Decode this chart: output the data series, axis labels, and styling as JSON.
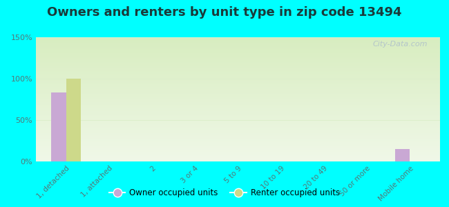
{
  "title": "Owners and renters by unit type in zip code 13494",
  "categories": [
    "1, detached",
    "1, attached",
    "2",
    "3 or 4",
    "5 to 9",
    "10 to 19",
    "20 to 49",
    "50 or more",
    "Mobile home"
  ],
  "owner_values": [
    83,
    0,
    0,
    0,
    0,
    0,
    0,
    0,
    15
  ],
  "renter_values": [
    100,
    0,
    0,
    0,
    0,
    0,
    0,
    0,
    0
  ],
  "owner_color": "#c9a8d4",
  "renter_color": "#cdd98a",
  "background_color": "#00ffff",
  "ylim": [
    0,
    150
  ],
  "yticks": [
    0,
    50,
    100,
    150
  ],
  "ytick_labels": [
    "0%",
    "50%",
    "100%",
    "150%"
  ],
  "watermark": "City-Data.com",
  "legend_owner": "Owner occupied units",
  "legend_renter": "Renter occupied units",
  "bar_width": 0.35,
  "title_fontsize": 13,
  "title_color": "#1a3a3a",
  "tick_color": "#557777",
  "grid_color": "#ddeecc",
  "plot_bg_color_top": "#d8edc0",
  "plot_bg_color_bottom": "#f0f8e8"
}
